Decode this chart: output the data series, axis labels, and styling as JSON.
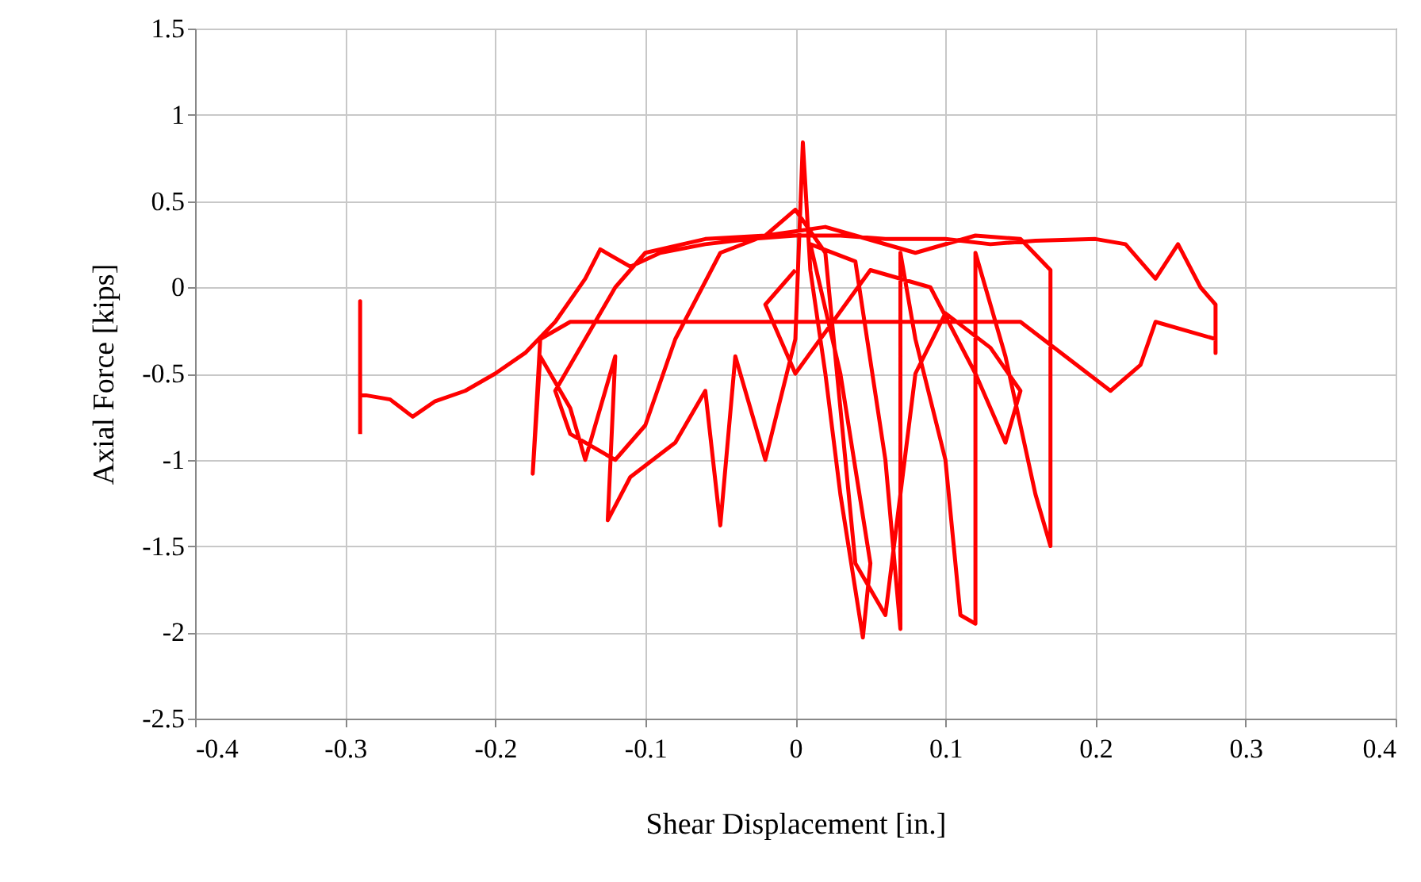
{
  "chart_data": {
    "type": "line",
    "xlabel": "Shear Displacement  [in.]",
    "ylabel": "Axial Force [kips]",
    "xlim": [
      -0.4,
      0.4
    ],
    "ylim": [
      -2.5,
      1.5
    ],
    "xticks": [
      -0.4,
      -0.3,
      -0.2,
      -0.1,
      0,
      0.1,
      0.2,
      0.3,
      0.4
    ],
    "yticks": [
      -2.5,
      -2,
      -1.5,
      -1,
      -0.5,
      0,
      0.5,
      1,
      1.5
    ],
    "grid": true,
    "marker": "none",
    "line_style": "solid",
    "series": [
      {
        "color": "#ff0000",
        "x": [
          -0.29,
          -0.29,
          -0.29,
          -0.27,
          -0.255,
          -0.24,
          -0.22,
          -0.2,
          -0.18,
          -0.16,
          -0.14,
          -0.13,
          -0.11,
          -0.09,
          -0.06,
          -0.03,
          0,
          0.03,
          0.06,
          0.1,
          0.13,
          0.16,
          0.2,
          0.22,
          0.24,
          0.255,
          0.27,
          0.28,
          0.28,
          0.28,
          0.26,
          0.24,
          0.23,
          0.21,
          0.18,
          0.15,
          0.1,
          0.05,
          0,
          -0.05,
          -0.1,
          -0.15,
          -0.17,
          -0.175,
          -0.17,
          -0.15,
          -0.14,
          -0.12,
          -0.125,
          -0.11,
          -0.08,
          -0.06,
          -0.05,
          -0.04,
          -0.02,
          0,
          0.005,
          0.01,
          0.02,
          0.03,
          0.045,
          0.05,
          0.03,
          0.01,
          0.04,
          0.06,
          0.07,
          0.07,
          0.08,
          0.1,
          0.11,
          0.12,
          0.12,
          0.14,
          0.16,
          0.17,
          0.17,
          0.15,
          0.12,
          0.08,
          0.04,
          0.02,
          -0.02,
          -0.06,
          -0.1,
          -0.12,
          -0.14,
          -0.16,
          -0.15,
          -0.12,
          -0.1,
          -0.08,
          -0.05,
          -0.02,
          0,
          0.02,
          0.04,
          0.06,
          0.08,
          0.1,
          0.13,
          0.15,
          0.14,
          0.12,
          0.09,
          0.05,
          0,
          -0.02,
          0
        ],
        "values": [
          -0.85,
          -0.08,
          -0.62,
          -0.65,
          -0.75,
          -0.66,
          -0.6,
          -0.5,
          -0.38,
          -0.2,
          0.05,
          0.22,
          0.12,
          0.2,
          0.25,
          0.28,
          0.3,
          0.3,
          0.28,
          0.28,
          0.25,
          0.27,
          0.28,
          0.25,
          0.05,
          0.25,
          0,
          -0.1,
          -0.38,
          -0.3,
          -0.25,
          -0.2,
          -0.45,
          -0.6,
          -0.4,
          -0.2,
          -0.2,
          -0.2,
          -0.2,
          -0.2,
          -0.2,
          -0.2,
          -0.3,
          -1.08,
          -0.4,
          -0.7,
          -1,
          -0.4,
          -1.35,
          -1.1,
          -0.9,
          -0.6,
          -1.38,
          -0.4,
          -1,
          -0.3,
          0.84,
          0.1,
          -0.5,
          -1.2,
          -2.03,
          -1.6,
          -0.5,
          0.25,
          0.15,
          -1,
          -1.98,
          0.2,
          -0.3,
          -1,
          -1.9,
          -1.95,
          0.2,
          -0.4,
          -1.2,
          -1.5,
          0.1,
          0.28,
          0.3,
          0.2,
          0.3,
          0.35,
          0.3,
          0.28,
          0.2,
          0,
          -0.3,
          -0.6,
          -0.85,
          -1,
          -0.8,
          -0.3,
          0.2,
          0.3,
          0.45,
          0.2,
          -1.6,
          -1.9,
          -0.5,
          -0.15,
          -0.35,
          -0.6,
          -0.9,
          -0.5,
          0,
          0.1,
          -0.5,
          -0.1,
          0.1
        ]
      }
    ]
  }
}
